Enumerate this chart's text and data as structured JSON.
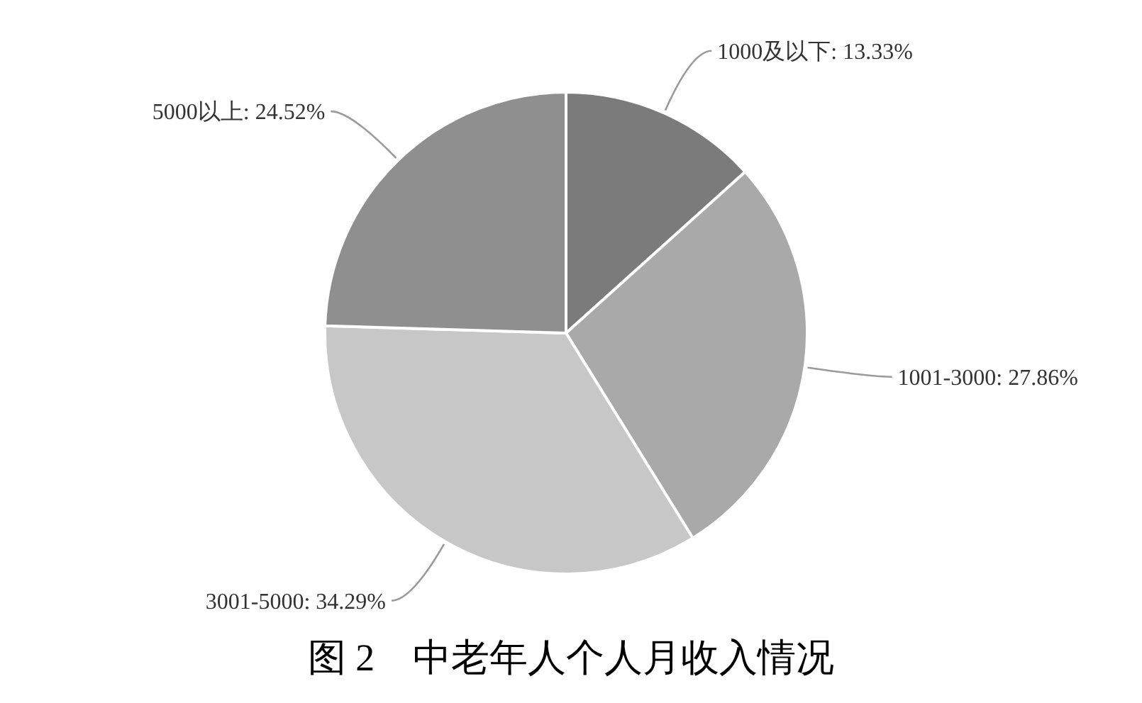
{
  "chart_data": {
    "type": "pie",
    "title": "图 2　中老年人个人月收入情况",
    "categories": [
      "1000及以下",
      "1001-3000",
      "3001-5000",
      "5000以上"
    ],
    "values": [
      13.33,
      27.86,
      34.29,
      24.52
    ],
    "value_labels": [
      "13.33%",
      "27.86%",
      "34.29%",
      "24.52%"
    ],
    "colors": [
      "#7b7b7b",
      "#a9a9a9",
      "#c7c7c7",
      "#8f8f8f"
    ],
    "legend": false
  }
}
